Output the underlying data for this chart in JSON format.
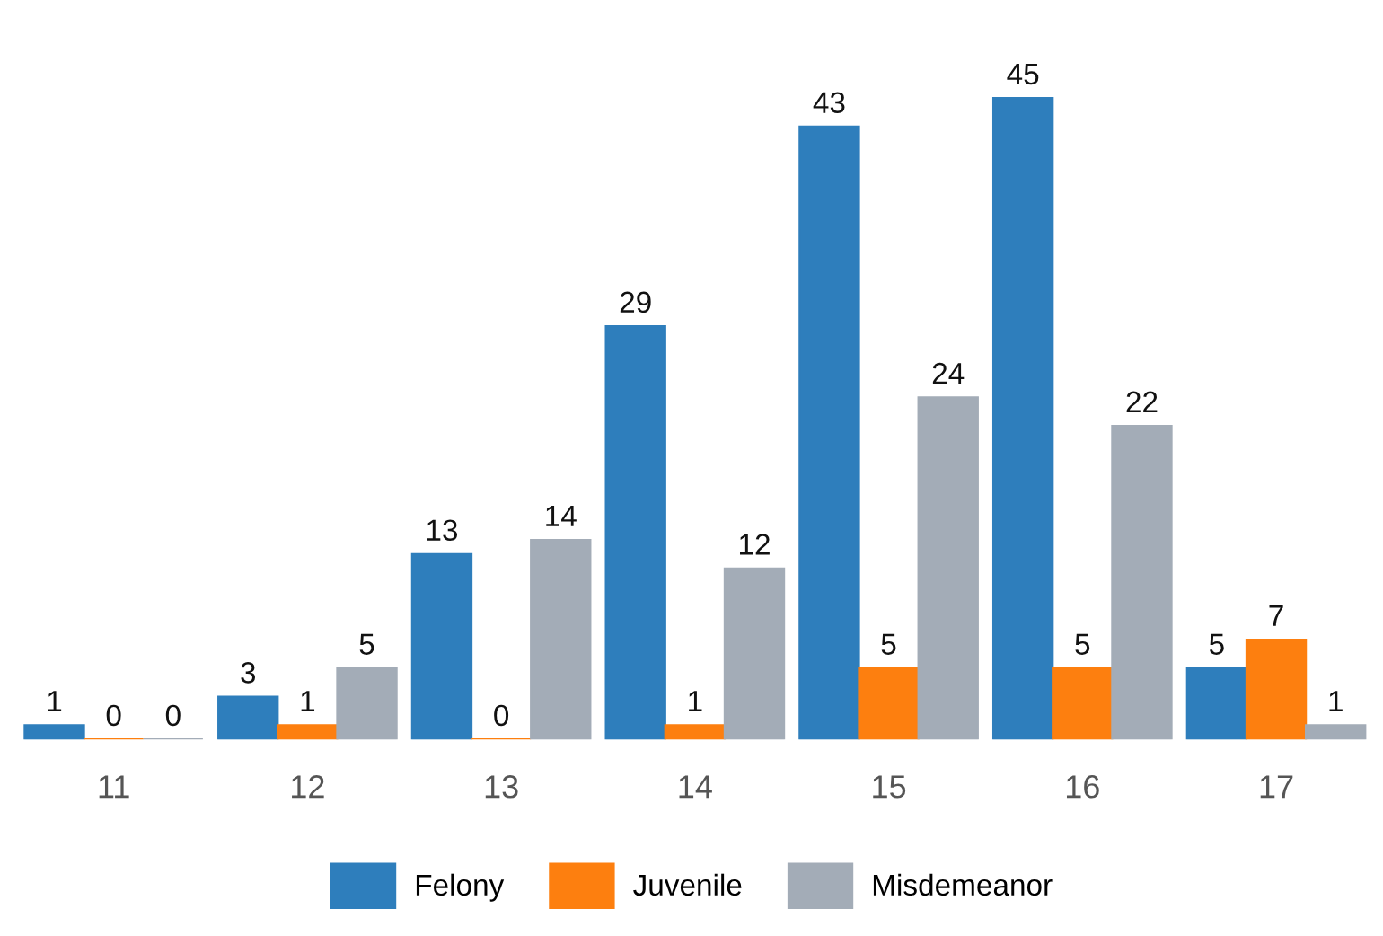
{
  "chart_data": {
    "type": "bar",
    "categories": [
      "11",
      "12",
      "13",
      "14",
      "15",
      "16",
      "17"
    ],
    "series": [
      {
        "name": "Felony",
        "color": "#2e7ebc",
        "values": [
          1,
          3,
          13,
          29,
          43,
          45,
          5
        ]
      },
      {
        "name": "Juvenile",
        "color": "#fd7f0f",
        "values": [
          0,
          1,
          0,
          1,
          5,
          5,
          7
        ]
      },
      {
        "name": "Misdemeanor",
        "color": "#a3acb7",
        "values": [
          0,
          5,
          14,
          12,
          24,
          22,
          1
        ]
      }
    ],
    "data_labels": true,
    "legend": "bottom",
    "grid": false
  }
}
